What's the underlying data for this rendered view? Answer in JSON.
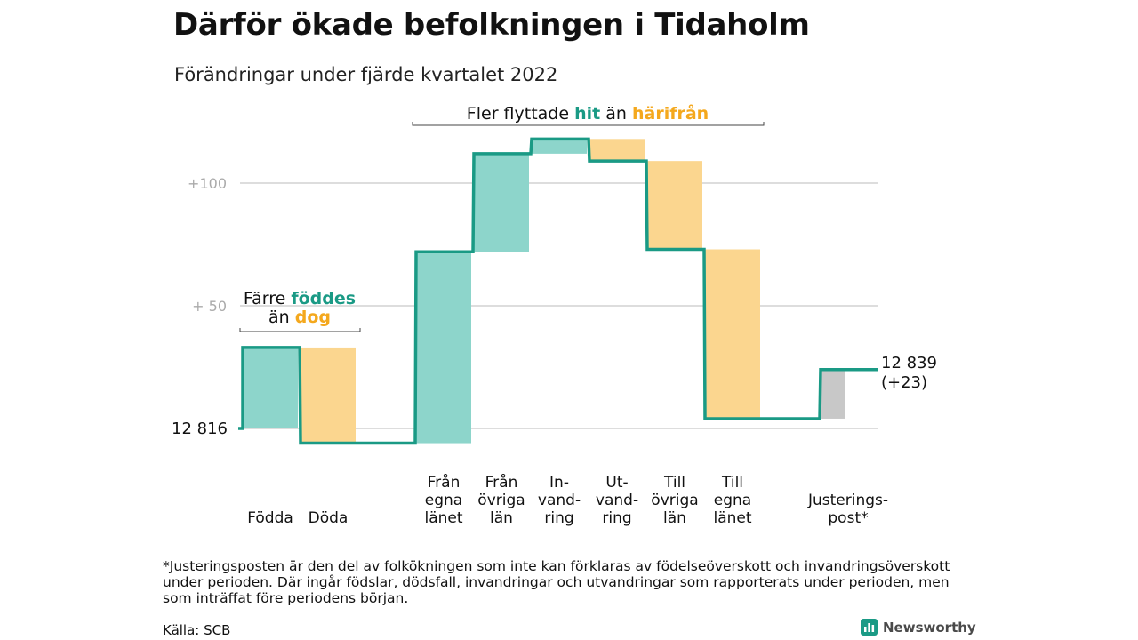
{
  "title": "Därför ökade befolkningen i Tidaholm",
  "subtitle": "Förändringar under fjärde kvartalet 2022",
  "chart_data": {
    "type": "waterfall",
    "start_value": 12816,
    "start_label": "12 816",
    "end_label_line1": "12 839",
    "end_label_line2": "(+23)",
    "y_ticks": [
      {
        "value": 100,
        "label": "+100"
      },
      {
        "value": 50,
        "label": "+ 50"
      }
    ],
    "steps": [
      {
        "label_lines": [
          "Födda"
        ],
        "delta": 33,
        "kind": "in"
      },
      {
        "label_lines": [
          "Döda"
        ],
        "delta": -39,
        "kind": "out"
      },
      {
        "label_lines": [],
        "delta": 0,
        "kind": "gap"
      },
      {
        "label_lines": [
          "Från",
          "egna",
          "länet"
        ],
        "delta": 78,
        "kind": "in"
      },
      {
        "label_lines": [
          "Från",
          "övriga",
          "län"
        ],
        "delta": 40,
        "kind": "in"
      },
      {
        "label_lines": [
          "In-",
          "vand-",
          "ring"
        ],
        "delta": 6,
        "kind": "in"
      },
      {
        "label_lines": [
          "Ut-",
          "vand-",
          "ring"
        ],
        "delta": -9,
        "kind": "out"
      },
      {
        "label_lines": [
          "Till",
          "övriga",
          "län"
        ],
        "delta": -36,
        "kind": "out"
      },
      {
        "label_lines": [
          "Till",
          "egna",
          "länet"
        ],
        "delta": -69,
        "kind": "out"
      },
      {
        "label_lines": [],
        "delta": 0,
        "kind": "gap"
      },
      {
        "label_lines": [
          "Justerings-",
          "post*"
        ],
        "delta": 20,
        "kind": "adjust"
      }
    ],
    "annotations": [
      {
        "id": "births",
        "line1_parts": [
          {
            "text": "Färre ",
            "color": "#111111",
            "bold": false
          },
          {
            "text": "föddes",
            "color": "#1a9a85",
            "bold": true
          }
        ],
        "line2_parts": [
          {
            "text": "än ",
            "color": "#111111",
            "bold": false
          },
          {
            "text": "dog",
            "color": "#f4a81d",
            "bold": true
          }
        ]
      },
      {
        "id": "migration",
        "line1_parts": [
          {
            "text": "Fler flyttade ",
            "color": "#111111",
            "bold": false
          },
          {
            "text": "hit",
            "color": "#1a9a85",
            "bold": true
          },
          {
            "text": " än ",
            "color": "#111111",
            "bold": false
          },
          {
            "text": "härifrån",
            "color": "#f4a81d",
            "bold": true
          }
        ]
      }
    ],
    "colors": {
      "in": "#8dd5cb",
      "out": "#fbd68f",
      "adjust": "#c8c8c8",
      "line": "#1a9a85",
      "grid": "#dddddd",
      "tick": "#aaaaaa"
    }
  },
  "footnote": "*Justeringsposten är den del av folkökningen som inte kan förklaras av födelseöverskott och invandringsöverskott under perioden. Där ingår födslar, dödsfall, invandringar och utvandringar som rapporterats under perioden, men som inträffat före periodens början.",
  "source": "Källa: SCB",
  "brand": {
    "name": "Newsworthy",
    "icon": "bar-chart-icon",
    "color": "#1a9a85"
  }
}
